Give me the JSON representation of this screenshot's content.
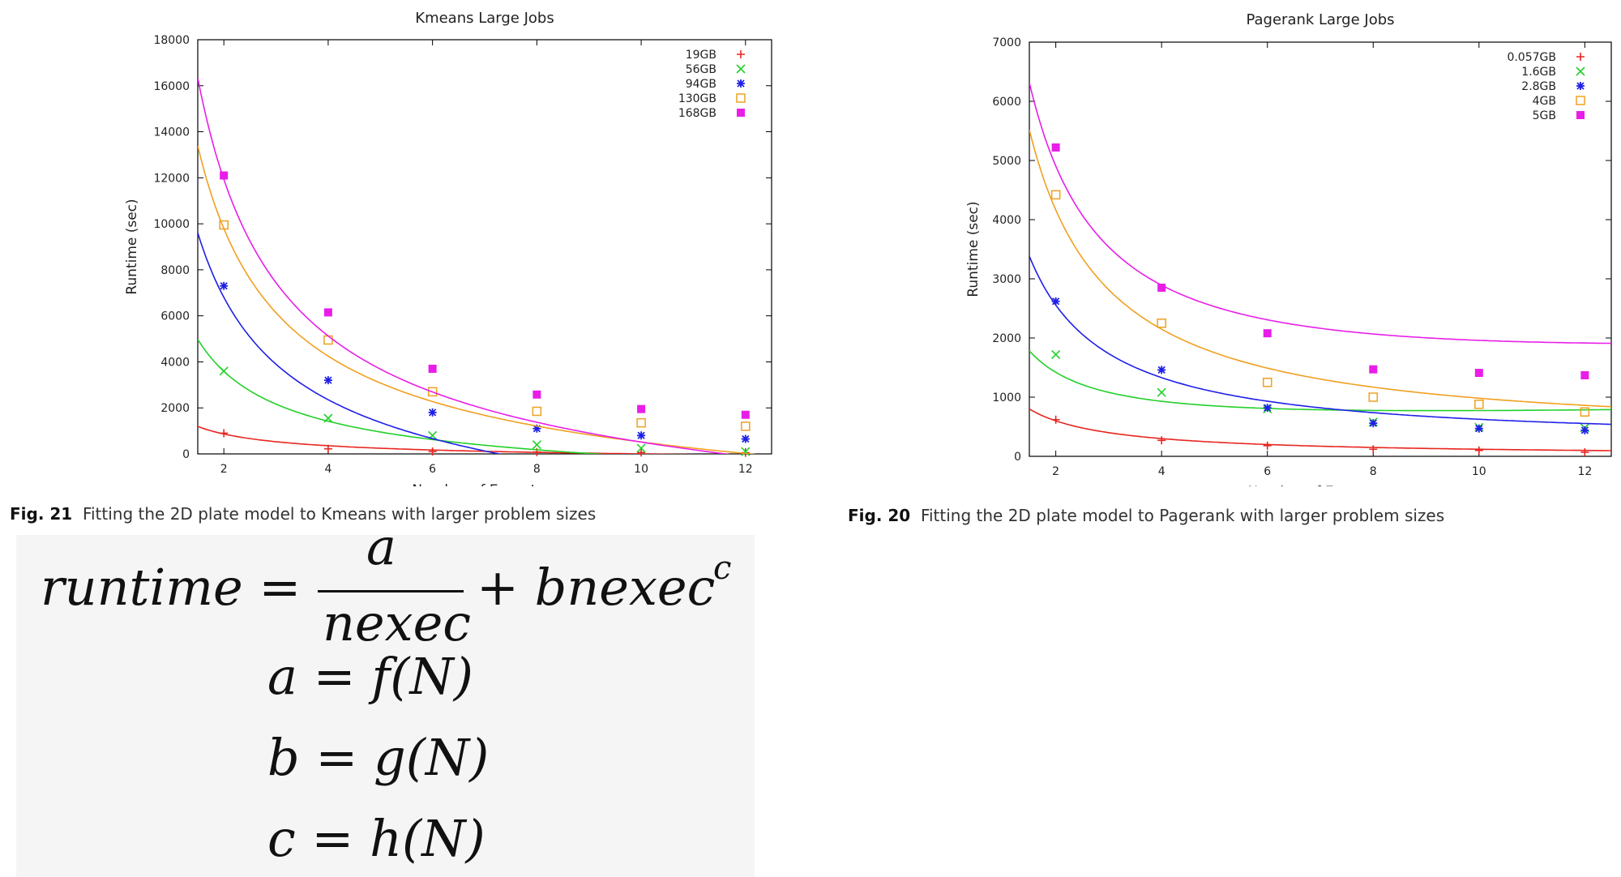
{
  "chart_data": [
    {
      "type": "scatter",
      "title": "Kmeans Large Jobs",
      "xlabel": "Number of Executors",
      "ylabel": "Runtime (sec)",
      "xlim": [
        1.5,
        12.5
      ],
      "ylim": [
        0,
        18000
      ],
      "xticks": [
        2,
        4,
        6,
        8,
        10,
        12
      ],
      "yticks": [
        0,
        2000,
        4000,
        6000,
        8000,
        10000,
        12000,
        14000,
        16000,
        18000
      ],
      "legend_position": "top-right",
      "grid": false,
      "x": [
        2,
        4,
        6,
        8,
        10,
        12
      ],
      "series": [
        {
          "name": "19GB",
          "color": "#e8251f",
          "marker": "plus",
          "values": [
            900,
            220,
            100,
            80,
            60,
            50
          ],
          "fit": {
            "a": 1900,
            "b": -60,
            "c": 0.5
          }
        },
        {
          "name": "56GB",
          "color": "#22d02a",
          "marker": "x",
          "values": [
            3600,
            1550,
            800,
            400,
            250,
            100
          ],
          "fit": {
            "a": 8000,
            "b": -290,
            "c": 0.5
          }
        },
        {
          "name": "94GB",
          "color": "#1f1fe8",
          "marker": "star",
          "values": [
            7300,
            3200,
            1800,
            1100,
            800,
            650
          ],
          "fit": {
            "a": 15900,
            "b": -810,
            "c": 0.5
          }
        },
        {
          "name": "130GB",
          "color": "#f0a020",
          "marker": "square-open",
          "values": [
            9950,
            4950,
            2700,
            1850,
            1350,
            1200
          ],
          "fit": {
            "a": 21000,
            "b": -500,
            "c": 0.5
          }
        },
        {
          "name": "168GB",
          "color": "#e81ee8",
          "marker": "square-filled",
          "values": [
            12100,
            6150,
            3700,
            2580,
            1950,
            1700
          ],
          "fit": {
            "a": 25700,
            "b": -650,
            "c": 0.5
          }
        }
      ]
    },
    {
      "type": "scatter",
      "title": "Pagerank Large Jobs",
      "xlabel": "Number of Executors",
      "ylabel": "Runtime (sec)",
      "xlim": [
        1.5,
        12.5
      ],
      "ylim": [
        0,
        7000
      ],
      "xticks": [
        2,
        4,
        6,
        8,
        10,
        12
      ],
      "yticks": [
        0,
        1000,
        2000,
        3000,
        4000,
        5000,
        6000,
        7000
      ],
      "legend_position": "top-right",
      "grid": false,
      "x": [
        2,
        4,
        6,
        8,
        10,
        12
      ],
      "series": [
        {
          "name": "0.057GB",
          "color": "#e8251f",
          "marker": "plus",
          "values": [
            620,
            270,
            180,
            120,
            100,
            70
          ],
          "fit": {
            "a": 1200,
            "b": 0,
            "c": 0.5
          }
        },
        {
          "name": "1.6GB",
          "color": "#22d02a",
          "marker": "x",
          "values": [
            1720,
            1080,
            800,
            580,
            490,
            480
          ],
          "fit": {
            "a": 2360,
            "b": 170,
            "c": 0.5
          }
        },
        {
          "name": "2.8GB",
          "color": "#1f1fe8",
          "marker": "star",
          "values": [
            2620,
            1460,
            820,
            560,
            470,
            440
          ],
          "fit": {
            "a": 5000,
            "b": 40,
            "c": 0.5
          }
        },
        {
          "name": "4GB",
          "color": "#f0a020",
          "marker": "square-open",
          "values": [
            4420,
            2250,
            1250,
            1000,
            880,
            750
          ],
          "fit": {
            "a": 8180,
            "b": 52,
            "c": 0.5
          }
        },
        {
          "name": "5GB",
          "color": "#e81ee8",
          "marker": "square-filled",
          "values": [
            5220,
            2850,
            2080,
            1470,
            1410,
            1370
          ],
          "fit": {
            "a": 8850,
            "b": 340,
            "c": 0.5
          }
        }
      ]
    }
  ],
  "captions": [
    {
      "fig": "Fig. 21",
      "text": "Fitting the 2D plate model to Kmeans with larger problem sizes"
    },
    {
      "fig": "Fig. 20",
      "text": "Fitting the 2D plate model to Pagerank with larger problem sizes"
    }
  ],
  "equations": {
    "runtime_lhs": "runtime =",
    "numerator": "a",
    "denominator": "nexec",
    "runtime_rhs": "+ bnexec",
    "exponent": "c",
    "a_eq": "a = f(N)",
    "b_eq": "b = g(N)",
    "c_eq": "c = h(N)"
  }
}
